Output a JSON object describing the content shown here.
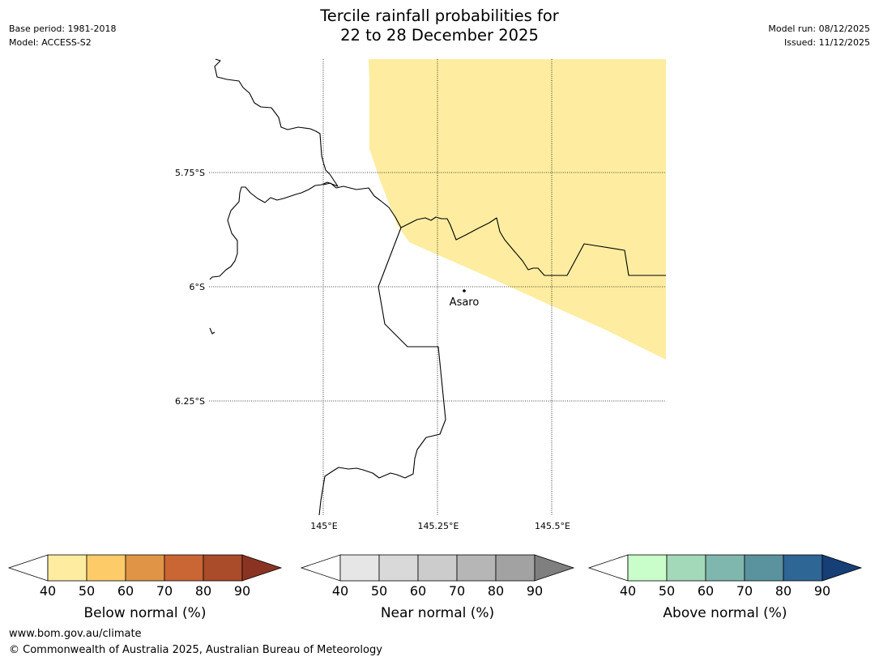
{
  "header": {
    "title_line1": "Tercile rainfall probabilities for",
    "title_line2": "22 to 28 December 2025",
    "base_period": "Base period: 1981-2018",
    "model": "Model: ACCESS-S2",
    "model_run": "Model run: 08/12/2025",
    "issued": "Issued: 11/12/2025"
  },
  "map": {
    "lat_labels": [
      "5.75°S",
      "6°S",
      "6.25°S"
    ],
    "lon_labels": [
      "145°E",
      "145.25°E",
      "145.5°E"
    ],
    "place": {
      "name": "Asaro",
      "lon": 145.29,
      "lat": -6.01
    },
    "shading": {
      "category": "Below normal",
      "range": "40-50%",
      "color": "#FEEDA0"
    },
    "colors": {
      "border": "#000000",
      "grid": "#000000"
    }
  },
  "colorbars": [
    {
      "label": "Below normal (%)",
      "ticks": [
        "40",
        "50",
        "60",
        "70",
        "80",
        "90"
      ],
      "colors": [
        "#FFFFFF",
        "#FEEDA0",
        "#FECB69",
        "#E09546",
        "#CA6634",
        "#AA4B29",
        "#8B3322"
      ]
    },
    {
      "label": "Near normal (%)",
      "ticks": [
        "40",
        "50",
        "60",
        "70",
        "80",
        "90"
      ],
      "colors": [
        "#FFFFFF",
        "#E6E6E6",
        "#D9D9D9",
        "#CCCCCC",
        "#B6B6B6",
        "#A2A2A2",
        "#7F7F7F"
      ]
    },
    {
      "label": "Above normal (%)",
      "ticks": [
        "40",
        "50",
        "60",
        "70",
        "80",
        "90"
      ],
      "colors": [
        "#FFFFFF",
        "#C9FDCA",
        "#A3D9B9",
        "#7FB7AE",
        "#5A929E",
        "#2E6695",
        "#163F76"
      ]
    }
  ],
  "footer": {
    "url": "www.bom.gov.au/climate",
    "copyright": "© Commonwealth of Australia 2025, Australian Bureau of Meteorology"
  }
}
